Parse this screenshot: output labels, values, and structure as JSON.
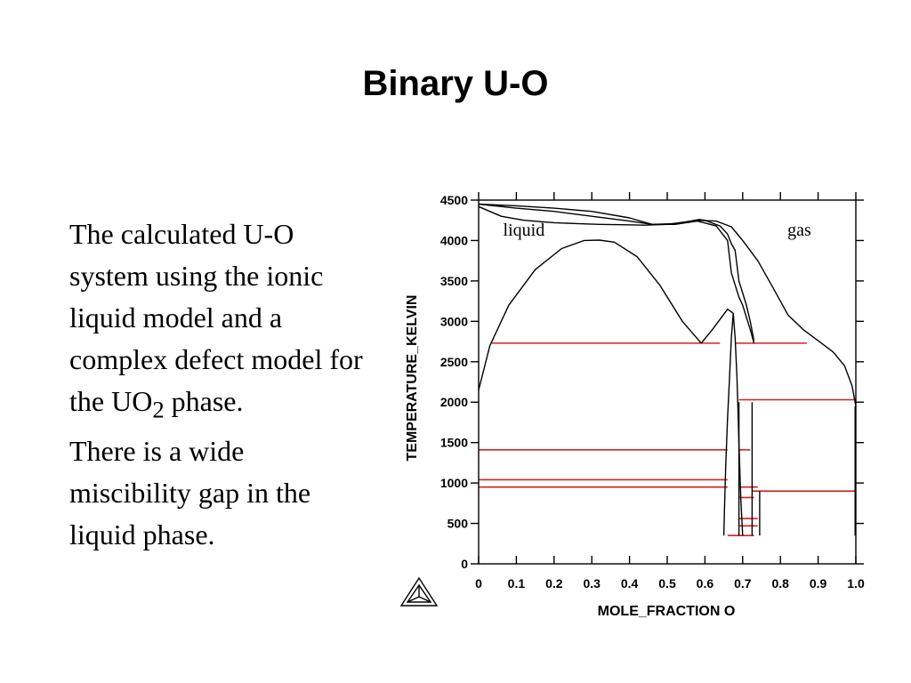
{
  "slide": {
    "title": "Binary U-O",
    "paragraph1_main": "The calculated U-O system using the ionic liquid model and a complex defect model for the UO",
    "paragraph1_sub": "2",
    "paragraph1_end": " phase.",
    "paragraph2": "There is a wide miscibility gap in the liquid phase."
  },
  "chart_data": {
    "type": "line",
    "xlabel": "MOLE_FRACTION O",
    "ylabel": "TEMPERATURE_KELVIN",
    "xlim": [
      0,
      1
    ],
    "ylim": [
      0,
      4500
    ],
    "xticks": [
      "0",
      "0.1",
      "0.2",
      "0.3",
      "0.4",
      "0.5",
      "0.6",
      "0.7",
      "0.8",
      "0.9",
      "1.0"
    ],
    "yticks": [
      "0",
      "500",
      "1000",
      "1500",
      "2000",
      "2500",
      "3000",
      "3500",
      "4000",
      "4500"
    ],
    "annotations": [
      {
        "text": "liquid",
        "x": 0.12,
        "y": 4060
      },
      {
        "text": "gas",
        "x": 0.85,
        "y": 4060
      }
    ],
    "curve_color": "#000000",
    "invariant_color": "#d62020",
    "phase_boundaries": [
      {
        "x": [
          0.0,
          0.1,
          0.2,
          0.3,
          0.4,
          0.46,
          0.52,
          0.58,
          0.63,
          0.67,
          0.7,
          0.74,
          0.78,
          0.82,
          0.86,
          0.9,
          0.94,
          0.97,
          0.99,
          1.0
        ],
        "y": [
          4450,
          4430,
          4400,
          4360,
          4280,
          4200,
          4210,
          4250,
          4240,
          4170,
          4000,
          3750,
          3420,
          3080,
          2900,
          2760,
          2620,
          2450,
          2200,
          1950
        ]
      },
      {
        "x": [
          0.0,
          0.1,
          0.2,
          0.3,
          0.4,
          0.46,
          0.52,
          0.58,
          0.63,
          0.66,
          0.67,
          0.68,
          0.69,
          0.7,
          0.71,
          0.72,
          0.73
        ],
        "y": [
          4450,
          4400,
          4360,
          4300,
          4240,
          4200,
          4200,
          4240,
          4180,
          4000,
          3600,
          3450,
          3300,
          3200,
          3050,
          2900,
          2730
        ]
      },
      {
        "x": [
          0.0,
          0.06,
          0.12,
          0.2,
          0.26,
          0.32,
          0.38,
          0.44,
          0.5,
          0.55,
          0.585,
          0.6,
          0.64,
          0.66,
          0.67,
          0.68,
          0.69,
          0.7,
          0.71,
          0.72,
          0.73
        ],
        "y": [
          4420,
          4300,
          4250,
          4220,
          4210,
          4200,
          4195,
          4190,
          4200,
          4230,
          4260,
          4250,
          4180,
          4080,
          3960,
          3880,
          3500,
          3350,
          3200,
          3000,
          2760
        ]
      },
      {
        "x": [
          0.0,
          0.03,
          0.08,
          0.15,
          0.22,
          0.28,
          0.32,
          0.36,
          0.42,
          0.48,
          0.54,
          0.59
        ],
        "y": [
          2150,
          2700,
          3200,
          3640,
          3900,
          4000,
          4005,
          3980,
          3800,
          3450,
          3000,
          2730
        ]
      },
      {
        "x": [
          0.59,
          0.62,
          0.66,
          0.675
        ],
        "y": [
          2730,
          2900,
          3150,
          3100
        ]
      },
      {
        "x": [
          0.675,
          0.67,
          0.665,
          0.66,
          0.655,
          0.652,
          0.65
        ],
        "y": [
          3100,
          2800,
          2300,
          1800,
          1200,
          700,
          350
        ]
      },
      {
        "x": [
          0.675,
          0.68,
          0.685,
          0.69,
          0.695,
          0.7
        ],
        "y": [
          3100,
          2800,
          2300,
          1500,
          800,
          350
        ]
      },
      {
        "x": [
          0.69,
          0.69
        ],
        "y": [
          2000,
          350
        ]
      },
      {
        "x": [
          0.725,
          0.725
        ],
        "y": [
          2000,
          350
        ]
      },
      {
        "x": [
          0.745,
          0.745
        ],
        "y": [
          900,
          350
        ]
      },
      {
        "x": [
          0.998,
          0.998
        ],
        "y": [
          1950,
          350
        ]
      }
    ],
    "invariant_lines": [
      {
        "x": [
          0.035,
          0.64
        ],
        "y": 2730
      },
      {
        "x": [
          0.68,
          0.87
        ],
        "y": 2730
      },
      {
        "x": [
          0.69,
          1.0
        ],
        "y": 2030
      },
      {
        "x": [
          0.0,
          0.66
        ],
        "y": 1410
      },
      {
        "x": [
          0.69,
          0.72
        ],
        "y": 1410
      },
      {
        "x": [
          0.0,
          0.66
        ],
        "y": 1040
      },
      {
        "x": [
          0.0,
          0.66
        ],
        "y": 950
      },
      {
        "x": [
          0.69,
          0.74
        ],
        "y": 950
      },
      {
        "x": [
          0.725,
          1.0
        ],
        "y": 900
      },
      {
        "x": [
          0.69,
          0.73
        ],
        "y": 820
      },
      {
        "x": [
          0.69,
          0.74
        ],
        "y": 560
      },
      {
        "x": [
          0.69,
          0.74
        ],
        "y": 470
      },
      {
        "x": [
          0.66,
          0.73
        ],
        "y": 350
      }
    ]
  }
}
